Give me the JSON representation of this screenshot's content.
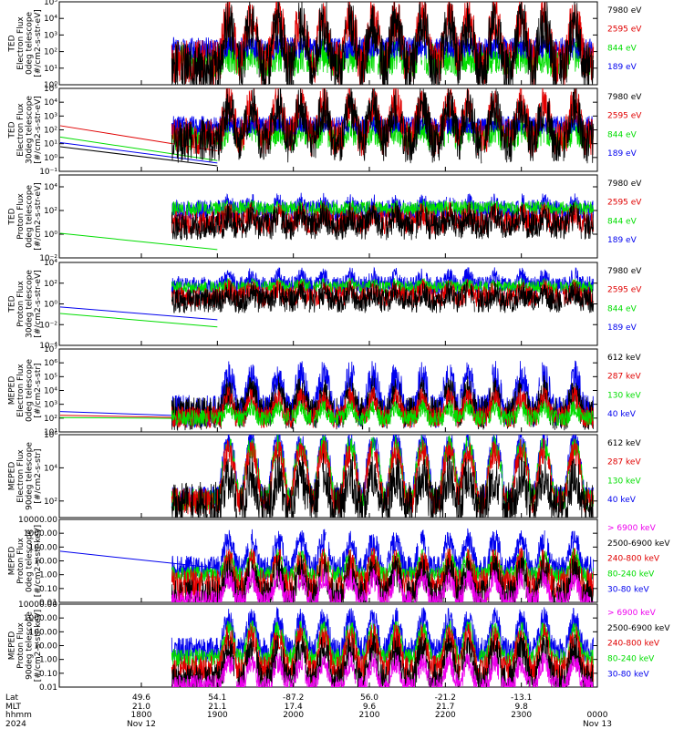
{
  "panels": [
    {
      "ylabel": [
        "TED",
        "Electron Flux",
        "0deg telescope",
        "[#/cm2-s-str-eV]"
      ],
      "yscale": "log",
      "ylim": [
        1,
        100000
      ],
      "ticks": [
        {
          "v": 1,
          "label": "10⁰"
        },
        {
          "v": 10,
          "label": "10¹"
        },
        {
          "v": 100,
          "label": "10²"
        },
        {
          "v": 1000,
          "label": "10³"
        },
        {
          "v": 10000,
          "label": "10⁴"
        },
        {
          "v": 100000,
          "label": "10⁵"
        }
      ],
      "legend": [
        {
          "label": "7980 eV",
          "color": "#000000"
        },
        {
          "label": "2595 eV",
          "color": "#e00000"
        },
        {
          "label": "844 eV",
          "color": "#00dd00"
        },
        {
          "label": "189 eV",
          "color": "#0000ee"
        }
      ],
      "series": [
        {
          "color": "#00dd00",
          "base": 30,
          "amp": 25,
          "noise": 0.5,
          "seed": 11,
          "start_hour": 18.4
        },
        {
          "color": "#0000ee",
          "base": 150,
          "amp": 50,
          "noise": 0.35,
          "seed": 12,
          "start_hour": 18.4
        },
        {
          "color": "#e00000",
          "base": 20,
          "amp": 10000,
          "noise": 0.7,
          "seed": 13,
          "start_hour": 18.4
        },
        {
          "color": "#000000",
          "base": 10,
          "amp": 5000,
          "noise": 0.8,
          "seed": 14,
          "start_hour": 18.4
        }
      ],
      "extrapolation": []
    },
    {
      "ylabel": [
        "TED",
        "Electron Flux",
        "30deg telescope",
        "[#/cm2-s-str-eV]"
      ],
      "yscale": "log",
      "ylim": [
        0.1,
        100000
      ],
      "ticks": [
        {
          "v": 0.1,
          "label": "10⁻¹"
        },
        {
          "v": 1,
          "label": "10⁰"
        },
        {
          "v": 10,
          "label": "10¹"
        },
        {
          "v": 100,
          "label": "10²"
        },
        {
          "v": 1000,
          "label": "10³"
        },
        {
          "v": 10000,
          "label": "10⁴"
        },
        {
          "v": 100000,
          "label": "10⁵"
        }
      ],
      "legend": [
        {
          "label": "7980 eV",
          "color": "#000000"
        },
        {
          "label": "2595 eV",
          "color": "#e00000"
        },
        {
          "label": "844 eV",
          "color": "#00dd00"
        },
        {
          "label": "189 eV",
          "color": "#0000ee"
        }
      ],
      "series": [
        {
          "color": "#00dd00",
          "base": 30,
          "amp": 80,
          "noise": 0.5,
          "seed": 21,
          "start_hour": 18.4
        },
        {
          "color": "#0000ee",
          "base": 200,
          "amp": 60,
          "noise": 0.35,
          "seed": 22,
          "start_hour": 18.4
        },
        {
          "color": "#e00000",
          "base": 30,
          "amp": 8000,
          "noise": 0.7,
          "seed": 23,
          "start_hour": 18.4
        },
        {
          "color": "#000000",
          "base": 15,
          "amp": 4000,
          "noise": 0.8,
          "seed": 24,
          "start_hour": 18.4
        }
      ],
      "extrapolation": [
        {
          "color": "#e00000",
          "y0": 200,
          "y1": 3
        },
        {
          "color": "#00dd00",
          "y0": 30,
          "y1": 0.6
        },
        {
          "color": "#0000ee",
          "y0": 12,
          "y1": 0.4
        },
        {
          "color": "#000000",
          "y0": 6,
          "y1": 0.25
        }
      ]
    },
    {
      "ylabel": [
        "TED",
        "Proton Flux",
        "0deg telescope",
        "[#/cm2-s-str-eV]"
      ],
      "yscale": "log",
      "ylim": [
        0.01,
        100000
      ],
      "ticks": [
        {
          "v": 0.01,
          "label": "10⁻²"
        },
        {
          "v": 1,
          "label": "10⁰"
        },
        {
          "v": 100,
          "label": "10²"
        },
        {
          "v": 10000,
          "label": "10⁴"
        }
      ],
      "legend": [
        {
          "label": "7980 eV",
          "color": "#000000"
        },
        {
          "label": "2595 eV",
          "color": "#e00000"
        },
        {
          "label": "844 eV",
          "color": "#00dd00"
        },
        {
          "label": "189 eV",
          "color": "#0000ee"
        }
      ],
      "series": [
        {
          "color": "#0000ee",
          "base": 100,
          "amp": 300,
          "noise": 0.45,
          "seed": 31,
          "start_hour": 18.4
        },
        {
          "color": "#00dd00",
          "base": 150,
          "amp": 60,
          "noise": 0.3,
          "seed": 32,
          "start_hour": 18.4
        },
        {
          "color": "#e00000",
          "base": 10,
          "amp": 50,
          "noise": 0.5,
          "seed": 33,
          "start_hour": 18.4
        },
        {
          "color": "#000000",
          "base": 5,
          "amp": 30,
          "noise": 0.6,
          "seed": 34,
          "start_hour": 18.4
        }
      ],
      "extrapolation": [
        {
          "color": "#00dd00",
          "y0": 1.2,
          "y1": 0.05
        }
      ]
    },
    {
      "ylabel": [
        "TED",
        "Proton Flux",
        "30deg telescope",
        "[#/cm2-s-str-eV]"
      ],
      "yscale": "log",
      "ylim": [
        0.0001,
        10000
      ],
      "ticks": [
        {
          "v": 0.0001,
          "label": "10⁻⁴"
        },
        {
          "v": 0.01,
          "label": "10⁻²"
        },
        {
          "v": 1,
          "label": "10⁰"
        },
        {
          "v": 100,
          "label": "10²"
        },
        {
          "v": 10000,
          "label": "10⁴"
        }
      ],
      "legend": [
        {
          "label": "7980 eV",
          "color": "#000000"
        },
        {
          "label": "2595 eV",
          "color": "#e00000"
        },
        {
          "label": "844 eV",
          "color": "#00dd00"
        },
        {
          "label": "189 eV",
          "color": "#0000ee"
        }
      ],
      "series": [
        {
          "color": "#0000ee",
          "base": 60,
          "amp": 400,
          "noise": 0.45,
          "seed": 41,
          "start_hour": 18.4
        },
        {
          "color": "#00dd00",
          "base": 40,
          "amp": 50,
          "noise": 0.3,
          "seed": 42,
          "start_hour": 18.4
        },
        {
          "color": "#e00000",
          "base": 5,
          "amp": 20,
          "noise": 0.5,
          "seed": 43,
          "start_hour": 18.4
        },
        {
          "color": "#000000",
          "base": 2,
          "amp": 10,
          "noise": 0.6,
          "seed": 44,
          "start_hour": 18.4
        }
      ],
      "extrapolation": [
        {
          "color": "#0000ee",
          "y0": 0.5,
          "y1": 0.03
        },
        {
          "color": "#00dd00",
          "y0": 0.12,
          "y1": 0.006
        }
      ]
    },
    {
      "ylabel": [
        "MEPED",
        "Electron Flux",
        "0deg telescope",
        "[#/cm2-s-str]"
      ],
      "yscale": "log",
      "ylim": [
        10,
        10000000
      ],
      "ticks": [
        {
          "v": 10,
          "label": "10¹"
        },
        {
          "v": 100,
          "label": "10²"
        },
        {
          "v": 1000,
          "label": "10³"
        },
        {
          "v": 10000,
          "label": "10⁴"
        },
        {
          "v": 100000,
          "label": "10⁵"
        },
        {
          "v": 1000000,
          "label": "10⁶"
        },
        {
          "v": 10000000,
          "label": "10⁷"
        }
      ],
      "legend": [
        {
          "label": "612 keV",
          "color": "#000000"
        },
        {
          "label": "287 keV",
          "color": "#e00000"
        },
        {
          "label": "130 keV",
          "color": "#00dd00"
        },
        {
          "label": "40 keV",
          "color": "#0000ee"
        }
      ],
      "series": [
        {
          "color": "#0000ee",
          "base": 300,
          "amp": 100000,
          "noise": 0.6,
          "seed": 51,
          "start_hour": 18.4
        },
        {
          "color": "#000000",
          "base": 200,
          "amp": 8000,
          "noise": 0.6,
          "seed": 52,
          "start_hour": 18.4
        },
        {
          "color": "#e00000",
          "base": 120,
          "amp": 3000,
          "noise": 0.4,
          "seed": 53,
          "start_hour": 18.4
        },
        {
          "color": "#00dd00",
          "base": 100,
          "amp": 500,
          "noise": 0.3,
          "seed": 54,
          "start_hour": 18.4
        }
      ],
      "extrapolation": [
        {
          "color": "#0000ee",
          "y0": 300,
          "y1": 120
        },
        {
          "color": "#e00000",
          "y0": 160,
          "y1": 100
        },
        {
          "color": "#00dd00",
          "y0": 110,
          "y1": 90
        }
      ]
    },
    {
      "ylabel": [
        "MEPED",
        "Electron Flux",
        "90deg telescope",
        "[#/cm2-s-str]"
      ],
      "yscale": "log",
      "ylim": [
        10,
        1000000
      ],
      "ticks": [
        {
          "v": 100,
          "label": "10²"
        },
        {
          "v": 10000,
          "label": "10⁴"
        },
        {
          "v": 1000000,
          "label": "10⁶"
        }
      ],
      "legend": [
        {
          "label": "612 keV",
          "color": "#000000"
        },
        {
          "label": "287 keV",
          "color": "#e00000"
        },
        {
          "label": "130 keV",
          "color": "#00dd00"
        },
        {
          "label": "40 keV",
          "color": "#0000ee"
        }
      ],
      "series": [
        {
          "color": "#0000ee",
          "base": 150,
          "amp": 400000,
          "noise": 0.35,
          "seed": 61,
          "start_hour": 18.4
        },
        {
          "color": "#00dd00",
          "base": 120,
          "amp": 200000,
          "noise": 0.35,
          "seed": 62,
          "start_hour": 18.4
        },
        {
          "color": "#e00000",
          "base": 100,
          "amp": 100000,
          "noise": 0.4,
          "seed": 63,
          "start_hour": 18.4
        },
        {
          "color": "#000000",
          "base": 60,
          "amp": 3000,
          "noise": 0.7,
          "seed": 64,
          "start_hour": 18.4
        }
      ],
      "extrapolation": []
    },
    {
      "ylabel": [
        "MEPED",
        "Proton Flux",
        "0deg telescope",
        "[#/cm2-s-str-keV]"
      ],
      "yscale": "log",
      "ylim": [
        0.01,
        10000
      ],
      "ticks": [
        {
          "v": 0.01,
          "label": "0.01"
        },
        {
          "v": 0.1,
          "label": "0.10"
        },
        {
          "v": 1,
          "label": "1.00"
        },
        {
          "v": 10,
          "label": "10.00"
        },
        {
          "v": 100,
          "label": "100.00"
        },
        {
          "v": 1000,
          "label": "1000.00"
        },
        {
          "v": 10000,
          "label": "10000.00"
        }
      ],
      "legend": [
        {
          "label": "> 6900 keV",
          "color": "#ee00ee"
        },
        {
          "label": "2500-6900 keV",
          "color": "#000000"
        },
        {
          "label": "240-800 keV",
          "color": "#e00000"
        },
        {
          "label": "80-240 keV",
          "color": "#00dd00"
        },
        {
          "label": "30-80 keV",
          "color": "#0000ee"
        }
      ],
      "series": [
        {
          "color": "#0000ee",
          "base": 3,
          "amp": 300,
          "noise": 0.45,
          "seed": 71,
          "start_hour": 18.4
        },
        {
          "color": "#00dd00",
          "base": 1,
          "amp": 20,
          "noise": 0.3,
          "seed": 72,
          "start_hour": 18.4
        },
        {
          "color": "#e00000",
          "base": 0.15,
          "amp": 6,
          "noise": 0.6,
          "seed": 73,
          "start_hour": 18.4
        },
        {
          "color": "#000000",
          "base": 0.03,
          "amp": 2,
          "noise": 0.6,
          "seed": 74,
          "start_hour": 18.4
        },
        {
          "color": "#ee00ee",
          "base": 0.012,
          "amp": 0.5,
          "noise": 0.4,
          "seed": 75,
          "start_hour": 18.4
        }
      ],
      "extrapolation": [
        {
          "color": "#0000ee",
          "y0": 50,
          "y1": 3
        }
      ]
    },
    {
      "ylabel": [
        "MEPED",
        "Proton Flux",
        "90deg telescope",
        "[#/cm2-s-str-keV]"
      ],
      "yscale": "log",
      "ylim": [
        0.01,
        10000
      ],
      "ticks": [
        {
          "v": 0.01,
          "label": "0.01"
        },
        {
          "v": 0.1,
          "label": "0.10"
        },
        {
          "v": 1,
          "label": "1.00"
        },
        {
          "v": 10,
          "label": "10.00"
        },
        {
          "v": 100,
          "label": "100.00"
        },
        {
          "v": 1000,
          "label": "1000.00"
        },
        {
          "v": 10000,
          "label": "10000.00"
        }
      ],
      "legend": [
        {
          "label": "> 6900 keV",
          "color": "#ee00ee"
        },
        {
          "label": "2500-6900 keV",
          "color": "#000000"
        },
        {
          "label": "240-800 keV",
          "color": "#e00000"
        },
        {
          "label": "80-240 keV",
          "color": "#00dd00"
        },
        {
          "label": "30-80 keV",
          "color": "#0000ee"
        }
      ],
      "series": [
        {
          "color": "#0000ee",
          "base": 5,
          "amp": 800,
          "noise": 0.45,
          "seed": 81,
          "start_hour": 18.4
        },
        {
          "color": "#00dd00",
          "base": 1.2,
          "amp": 150,
          "noise": 0.35,
          "seed": 82,
          "start_hour": 18.4
        },
        {
          "color": "#e00000",
          "base": 0.2,
          "amp": 40,
          "noise": 0.5,
          "seed": 83,
          "start_hour": 18.4
        },
        {
          "color": "#000000",
          "base": 0.03,
          "amp": 5,
          "noise": 0.6,
          "seed": 84,
          "start_hour": 18.4
        },
        {
          "color": "#ee00ee",
          "base": 0.012,
          "amp": 0.6,
          "noise": 0.4,
          "seed": 85,
          "start_hour": 18.4
        }
      ],
      "extrapolation": []
    }
  ],
  "chart_data": {
    "type": "line",
    "x_axis": {
      "range_hours": [
        18,
        24
      ],
      "row_labels": [
        "Lat",
        "MLT",
        "hhmm",
        "2024"
      ],
      "columns": [
        {
          "hour": 18,
          "lat": "49.6",
          "mlt": "21.0",
          "hhmm": "1800",
          "date": "Nov 12"
        },
        {
          "hour": 19,
          "lat": "54.1",
          "mlt": "21.1",
          "hhmm": "1900",
          "date": ""
        },
        {
          "hour": 20,
          "lat": "-87.2",
          "mlt": "17.4",
          "hhmm": "2000",
          "date": ""
        },
        {
          "hour": 21,
          "lat": "56.0",
          "mlt": "9.6",
          "hhmm": "2100",
          "date": ""
        },
        {
          "hour": 22,
          "lat": "-21.2",
          "mlt": "21.7",
          "hhmm": "2200",
          "date": ""
        },
        {
          "hour": 23,
          "lat": "-13.1",
          "mlt": "9.8",
          "hhmm": "2300",
          "date": ""
        },
        {
          "hour": 24,
          "lat": "",
          "mlt": "",
          "hhmm": "0000",
          "date": "Nov 13"
        }
      ]
    },
    "pass_peaks_hours": [
      19.15,
      19.45,
      19.8,
      20.1,
      20.4,
      20.75,
      21.05,
      21.35,
      21.7,
      22.05,
      22.3,
      22.65,
      23.0,
      23.3,
      23.7
    ],
    "grid": false,
    "legend_placement": "right of each panel"
  }
}
